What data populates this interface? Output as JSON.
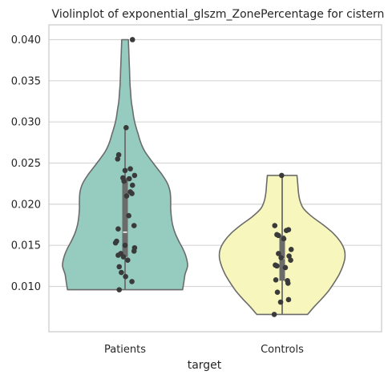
{
  "chart_data": {
    "type": "violin",
    "title": "Violinplot of exponential_glszm_ZonePercentage for cistern",
    "xlabel": "target",
    "ylabel": "",
    "categories": [
      "Patients",
      "Controls"
    ],
    "ylim": [
      0.0045,
      0.0418
    ],
    "yticks": [
      0.01,
      0.015,
      0.02,
      0.025,
      0.03,
      0.035,
      0.04
    ],
    "ytick_labels": [
      "0.010",
      "0.015",
      "0.020",
      "0.025",
      "0.030",
      "0.035",
      "0.040"
    ],
    "grid": true,
    "colors": {
      "Patients": "#96cbc0",
      "Controls": "#f7f7bd",
      "outline": "#6b6b6b",
      "points": "#3a3a3a",
      "box": "#6b6b6b",
      "median": "#ffffff",
      "grid": "#d6d6d6",
      "axes_frame": "#cccccc"
    },
    "groups": [
      {
        "name": "Patients",
        "min": 0.0096,
        "max": 0.04,
        "q1": 0.0136,
        "median": 0.0166,
        "q3": 0.0232,
        "whisker_low": 0.0096,
        "whisker_high": 0.0293,
        "density": [
          [
            0.0096,
            0.92
          ],
          [
            0.0105,
            0.94
          ],
          [
            0.0115,
            0.96
          ],
          [
            0.0125,
            1.0
          ],
          [
            0.0135,
            0.98
          ],
          [
            0.0145,
            0.93
          ],
          [
            0.0155,
            0.86
          ],
          [
            0.0165,
            0.8
          ],
          [
            0.0175,
            0.76
          ],
          [
            0.0185,
            0.74
          ],
          [
            0.0195,
            0.73
          ],
          [
            0.0205,
            0.73
          ],
          [
            0.0215,
            0.72
          ],
          [
            0.0225,
            0.68
          ],
          [
            0.0235,
            0.6
          ],
          [
            0.0245,
            0.5
          ],
          [
            0.0255,
            0.4
          ],
          [
            0.0265,
            0.31
          ],
          [
            0.0275,
            0.25
          ],
          [
            0.0285,
            0.21
          ],
          [
            0.0295,
            0.17
          ],
          [
            0.0305,
            0.14
          ],
          [
            0.0315,
            0.12
          ],
          [
            0.0325,
            0.1
          ],
          [
            0.0335,
            0.09
          ],
          [
            0.0345,
            0.08
          ],
          [
            0.0355,
            0.075
          ],
          [
            0.0365,
            0.07
          ],
          [
            0.0375,
            0.065
          ],
          [
            0.0385,
            0.06
          ],
          [
            0.0395,
            0.055
          ],
          [
            0.04,
            0.053
          ]
        ],
        "points": [
          [
            0.04,
            0.14
          ],
          [
            0.0293,
            0.02
          ],
          [
            0.026,
            -0.12
          ],
          [
            0.0255,
            -0.14
          ],
          [
            0.0243,
            0.1
          ],
          [
            0.0241,
            0.0
          ],
          [
            0.0235,
            0.18
          ],
          [
            0.0232,
            -0.04
          ],
          [
            0.0231,
            0.08
          ],
          [
            0.0228,
            -0.02
          ],
          [
            0.0223,
            0.14
          ],
          [
            0.0215,
            0.1
          ],
          [
            0.0213,
            0.13
          ],
          [
            0.021,
            0.03
          ],
          [
            0.0186,
            0.07
          ],
          [
            0.0174,
            0.17
          ],
          [
            0.017,
            -0.13
          ],
          [
            0.0155,
            -0.16
          ],
          [
            0.0153,
            -0.18
          ],
          [
            0.015,
            0.0
          ],
          [
            0.0147,
            0.18
          ],
          [
            0.0143,
            0.17
          ],
          [
            0.014,
            -0.08
          ],
          [
            0.0138,
            -0.13
          ],
          [
            0.0136,
            -0.03
          ],
          [
            0.0132,
            0.05
          ],
          [
            0.0124,
            -0.11
          ],
          [
            0.0117,
            -0.07
          ],
          [
            0.0112,
            0.01
          ],
          [
            0.0106,
            0.13
          ],
          [
            0.0096,
            -0.11
          ]
        ]
      },
      {
        "name": "Controls",
        "min": 0.0066,
        "max": 0.0235,
        "q1": 0.0107,
        "median": 0.0134,
        "q3": 0.0162,
        "whisker_low": 0.0066,
        "whisker_high": 0.0235,
        "density": [
          [
            0.0066,
            0.36
          ],
          [
            0.0075,
            0.45
          ],
          [
            0.0085,
            0.56
          ],
          [
            0.0095,
            0.66
          ],
          [
            0.0105,
            0.74
          ],
          [
            0.0115,
            0.81
          ],
          [
            0.0125,
            0.86
          ],
          [
            0.0135,
            0.89
          ],
          [
            0.0145,
            0.88
          ],
          [
            0.0155,
            0.82
          ],
          [
            0.0165,
            0.72
          ],
          [
            0.0175,
            0.58
          ],
          [
            0.0185,
            0.42
          ],
          [
            0.0195,
            0.3
          ],
          [
            0.0205,
            0.25
          ],
          [
            0.0215,
            0.23
          ],
          [
            0.0225,
            0.22
          ],
          [
            0.0235,
            0.21
          ]
        ],
        "points": [
          [
            0.0235,
            -0.01
          ],
          [
            0.0174,
            -0.14
          ],
          [
            0.0169,
            0.12
          ],
          [
            0.0168,
            0.08
          ],
          [
            0.0163,
            -0.1
          ],
          [
            0.0162,
            -0.07
          ],
          [
            0.0158,
            0.03
          ],
          [
            0.0145,
            0.17
          ],
          [
            0.014,
            -0.07
          ],
          [
            0.0137,
            0.13
          ],
          [
            0.0135,
            -0.02
          ],
          [
            0.0132,
            0.16
          ],
          [
            0.0126,
            -0.13
          ],
          [
            0.0125,
            -0.1
          ],
          [
            0.0123,
            0.06
          ],
          [
            0.0108,
            -0.12
          ],
          [
            0.0107,
            0.1
          ],
          [
            0.0104,
            0.11
          ],
          [
            0.0093,
            -0.09
          ],
          [
            0.0084,
            0.12
          ],
          [
            0.0081,
            -0.03
          ],
          [
            0.0066,
            -0.15
          ]
        ]
      }
    ]
  }
}
